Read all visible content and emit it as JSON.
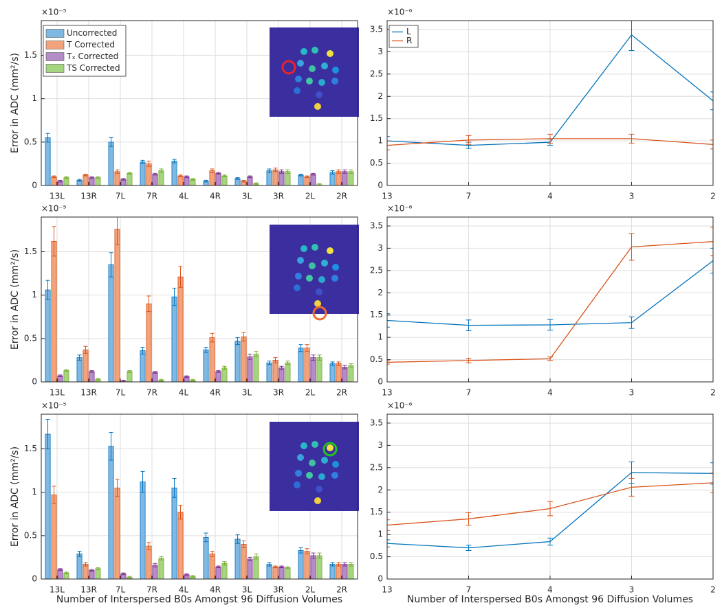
{
  "chart_data": [
    {
      "type": "bar",
      "ylabel": "Error in ADC (mm²/s)",
      "multiplier": "×10⁻⁵",
      "grid": true,
      "legend": "upper left",
      "marker_color": "#e8242a",
      "ylim": [
        0,
        1.9
      ],
      "yticks": [
        0,
        0.5,
        1,
        1.5
      ],
      "categories": [
        "13L",
        "13R",
        "7L",
        "7R",
        "4L",
        "4R",
        "3L",
        "3R",
        "2L",
        "2R"
      ],
      "series": [
        {
          "name": "Uncorrected",
          "color": "#7fb8e3",
          "values": [
            0.55,
            0.06,
            0.5,
            0.27,
            0.28,
            0.05,
            0.08,
            0.17,
            0.12,
            0.15
          ],
          "errors": [
            0.05,
            0.01,
            0.05,
            0.02,
            0.02,
            0.01,
            0.01,
            0.02,
            0.01,
            0.02
          ]
        },
        {
          "name": "T Corrected",
          "color": "#f2a37c",
          "values": [
            0.1,
            0.12,
            0.16,
            0.25,
            0.11,
            0.17,
            0.05,
            0.18,
            0.1,
            0.16
          ],
          "errors": [
            0.01,
            0.01,
            0.02,
            0.03,
            0.01,
            0.02,
            0.01,
            0.02,
            0.01,
            0.02
          ]
        },
        {
          "name": "Tₓ Corrected",
          "color": "#b48cc8",
          "values": [
            0.05,
            0.09,
            0.07,
            0.13,
            0.1,
            0.14,
            0.1,
            0.16,
            0.13,
            0.16
          ],
          "errors": [
            0.01,
            0.01,
            0.01,
            0.01,
            0.01,
            0.01,
            0.01,
            0.02,
            0.01,
            0.02
          ]
        },
        {
          "name": "TS Corrected",
          "color": "#a6d57f",
          "values": [
            0.09,
            0.09,
            0.14,
            0.17,
            0.07,
            0.11,
            0.02,
            0.16,
            0.01,
            0.16
          ],
          "errors": [
            0.01,
            0.01,
            0.01,
            0.02,
            0.01,
            0.01,
            0.01,
            0.02,
            0.01,
            0.02
          ]
        }
      ]
    },
    {
      "type": "bar",
      "ylabel": "Error in ADC (mm²/s)",
      "multiplier": "×10⁻⁵",
      "grid": true,
      "marker_color": "#f26b2a",
      "ylim": [
        0,
        1.9
      ],
      "yticks": [
        0,
        0.5,
        1,
        1.5
      ],
      "categories": [
        "13L",
        "13R",
        "7L",
        "7R",
        "4L",
        "4R",
        "3L",
        "3R",
        "2L",
        "2R"
      ],
      "series": [
        {
          "color": "#7fb8e3",
          "values": [
            1.06,
            0.28,
            1.35,
            0.36,
            0.98,
            0.37,
            0.47,
            0.22,
            0.39,
            0.21
          ],
          "errors": [
            0.11,
            0.03,
            0.14,
            0.04,
            0.1,
            0.03,
            0.04,
            0.02,
            0.04,
            0.02
          ]
        },
        {
          "color": "#f2a37c",
          "values": [
            1.62,
            0.37,
            1.76,
            0.9,
            1.21,
            0.51,
            0.52,
            0.25,
            0.39,
            0.21
          ],
          "errors": [
            0.17,
            0.04,
            0.18,
            0.09,
            0.12,
            0.05,
            0.05,
            0.03,
            0.04,
            0.02
          ]
        },
        {
          "color": "#b48cc8",
          "values": [
            0.07,
            0.12,
            0.01,
            0.11,
            0.06,
            0.12,
            0.29,
            0.16,
            0.28,
            0.17
          ],
          "errors": [
            0.01,
            0.01,
            0.01,
            0.01,
            0.01,
            0.01,
            0.03,
            0.02,
            0.03,
            0.02
          ]
        },
        {
          "color": "#a6d57f",
          "values": [
            0.13,
            0.03,
            0.12,
            0.02,
            0.02,
            0.16,
            0.32,
            0.22,
            0.28,
            0.19
          ],
          "errors": [
            0.01,
            0.01,
            0.01,
            0.01,
            0.01,
            0.02,
            0.03,
            0.02,
            0.03,
            0.02
          ]
        }
      ]
    },
    {
      "type": "bar",
      "ylabel": "Error in ADC (mm²/s)",
      "xlabel": "Number of Interspersed B0s Amongst 96 Diffusion Volumes",
      "multiplier": "×10⁻⁵",
      "grid": true,
      "marker_color": "#22c41e",
      "ylim": [
        0,
        1.9
      ],
      "yticks": [
        0,
        0.5,
        1,
        1.5
      ],
      "categories": [
        "13L",
        "13R",
        "7L",
        "7R",
        "4L",
        "4R",
        "3L",
        "3R",
        "2L",
        "2R"
      ],
      "series": [
        {
          "color": "#7fb8e3",
          "values": [
            1.67,
            0.29,
            1.53,
            1.12,
            1.05,
            0.48,
            0.46,
            0.17,
            0.33,
            0.17
          ],
          "errors": [
            0.17,
            0.03,
            0.16,
            0.12,
            0.11,
            0.05,
            0.05,
            0.02,
            0.03,
            0.02
          ]
        },
        {
          "color": "#f2a37c",
          "values": [
            0.97,
            0.17,
            1.05,
            0.38,
            0.77,
            0.29,
            0.4,
            0.14,
            0.32,
            0.17
          ],
          "errors": [
            0.1,
            0.02,
            0.1,
            0.04,
            0.08,
            0.03,
            0.04,
            0.01,
            0.03,
            0.02
          ]
        },
        {
          "color": "#b48cc8",
          "values": [
            0.11,
            0.1,
            0.06,
            0.16,
            0.05,
            0.14,
            0.23,
            0.14,
            0.27,
            0.17
          ],
          "errors": [
            0.01,
            0.01,
            0.01,
            0.02,
            0.01,
            0.01,
            0.02,
            0.01,
            0.03,
            0.02
          ]
        },
        {
          "color": "#a6d57f",
          "values": [
            0.07,
            0.12,
            0.02,
            0.24,
            0.03,
            0.18,
            0.26,
            0.13,
            0.27,
            0.17
          ],
          "errors": [
            0.01,
            0.01,
            0.01,
            0.02,
            0.01,
            0.02,
            0.03,
            0.01,
            0.03,
            0.02
          ]
        }
      ]
    },
    {
      "type": "line",
      "multiplier": "×10⁻⁶",
      "grid": true,
      "legend": "upper left",
      "ylim": [
        0,
        3.7
      ],
      "yticks": [
        0,
        0.5,
        1,
        1.5,
        2,
        2.5,
        3,
        3.5
      ],
      "categories": [
        "13",
        "7",
        "4",
        "3",
        "2"
      ],
      "series": [
        {
          "name": "L",
          "color": "#0072bd",
          "values": [
            1.0,
            0.9,
            0.97,
            3.38,
            1.9
          ],
          "errors": [
            0.1,
            0.07,
            0.07,
            0.35,
            0.2
          ]
        },
        {
          "name": "R",
          "color": "#d95319",
          "values": [
            0.9,
            1.02,
            1.05,
            1.05,
            0.92
          ],
          "errors": [
            0.1,
            0.1,
            0.1,
            0.1,
            0.1
          ]
        }
      ]
    },
    {
      "type": "line",
      "multiplier": "×10⁻⁶",
      "grid": true,
      "ylim": [
        0,
        3.7
      ],
      "yticks": [
        0,
        0.5,
        1,
        1.5,
        2,
        2.5,
        3,
        3.5
      ],
      "categories": [
        "13",
        "7",
        "4",
        "3",
        "2"
      ],
      "series": [
        {
          "color": "#0072bd",
          "values": [
            1.38,
            1.27,
            1.28,
            1.33,
            2.72
          ],
          "errors": [
            0.15,
            0.12,
            0.12,
            0.13,
            0.28
          ]
        },
        {
          "color": "#d95319",
          "values": [
            0.44,
            0.48,
            0.52,
            3.03,
            3.15
          ],
          "errors": [
            0.04,
            0.05,
            0.04,
            0.3,
            0.32
          ]
        }
      ]
    },
    {
      "type": "line",
      "xlabel": "Number of Interspersed B0s Amongst 96 Diffusion Volumes",
      "multiplier": "×10⁻⁶",
      "grid": true,
      "ylim": [
        0,
        3.7
      ],
      "yticks": [
        0,
        0.5,
        1,
        1.5,
        2,
        2.5,
        3,
        3.5
      ],
      "categories": [
        "13",
        "7",
        "4",
        "3",
        "2"
      ],
      "series": [
        {
          "color": "#0072bd",
          "values": [
            0.8,
            0.7,
            0.84,
            2.39,
            2.37
          ],
          "errors": [
            0.08,
            0.06,
            0.08,
            0.24,
            0.24
          ]
        },
        {
          "color": "#d95319",
          "values": [
            1.21,
            1.35,
            1.58,
            2.06,
            2.16
          ],
          "errors": [
            0.12,
            0.14,
            0.16,
            0.2,
            0.22
          ]
        }
      ]
    }
  ]
}
